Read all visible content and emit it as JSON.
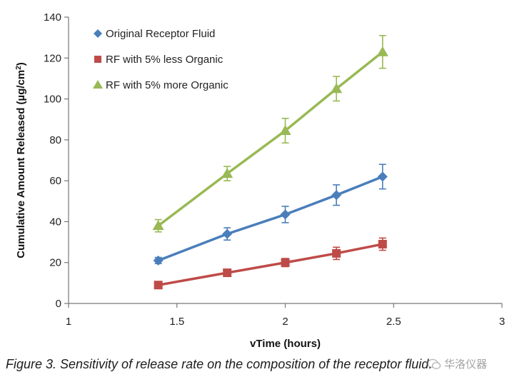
{
  "chart_data": {
    "type": "line",
    "xlabel": "vTime (hours)",
    "ylabel_main": "Cumulative Amount Released (µg/cm",
    "ylabel_sup": "2",
    "ylabel_end": ")",
    "xlim": [
      1,
      3
    ],
    "ylim": [
      0,
      140
    ],
    "xticks": [
      1,
      1.5,
      2,
      2.5,
      3
    ],
    "xtick_labels": [
      "1",
      "1.5",
      "2",
      "2.5",
      "3"
    ],
    "yticks": [
      0,
      20,
      40,
      60,
      80,
      100,
      120,
      140
    ],
    "ytick_labels": [
      "0",
      "20",
      "40",
      "60",
      "80",
      "100",
      "120",
      "140"
    ],
    "grid": false,
    "legend_position": "top-left",
    "series": [
      {
        "name": "Original Receptor Fluid",
        "marker": "diamond",
        "color": "#4a7ebb",
        "x": [
          1.414,
          1.732,
          2.0,
          2.236,
          2.449
        ],
        "y": [
          21,
          34,
          43.5,
          53,
          62
        ],
        "err": [
          1.5,
          3,
          4,
          5,
          6
        ]
      },
      {
        "name": "RF with 5% less Organic",
        "marker": "square",
        "color": "#be4b48",
        "x": [
          1.414,
          1.732,
          2.0,
          2.236,
          2.449
        ],
        "y": [
          9,
          15,
          20,
          24.5,
          29
        ],
        "err": [
          1,
          1.5,
          2,
          3,
          3
        ]
      },
      {
        "name": "RF with 5% more Organic",
        "marker": "triangle",
        "color": "#98b954",
        "x": [
          1.414,
          1.732,
          2.0,
          2.236,
          2.449
        ],
        "y": [
          38,
          63.5,
          84.5,
          105,
          123
        ],
        "err": [
          3,
          3.5,
          6,
          6,
          8
        ]
      }
    ]
  },
  "caption": "Figure 3. Sensitivity of release rate on the composition of the receptor fluid.",
  "watermark": "华洛仪器"
}
